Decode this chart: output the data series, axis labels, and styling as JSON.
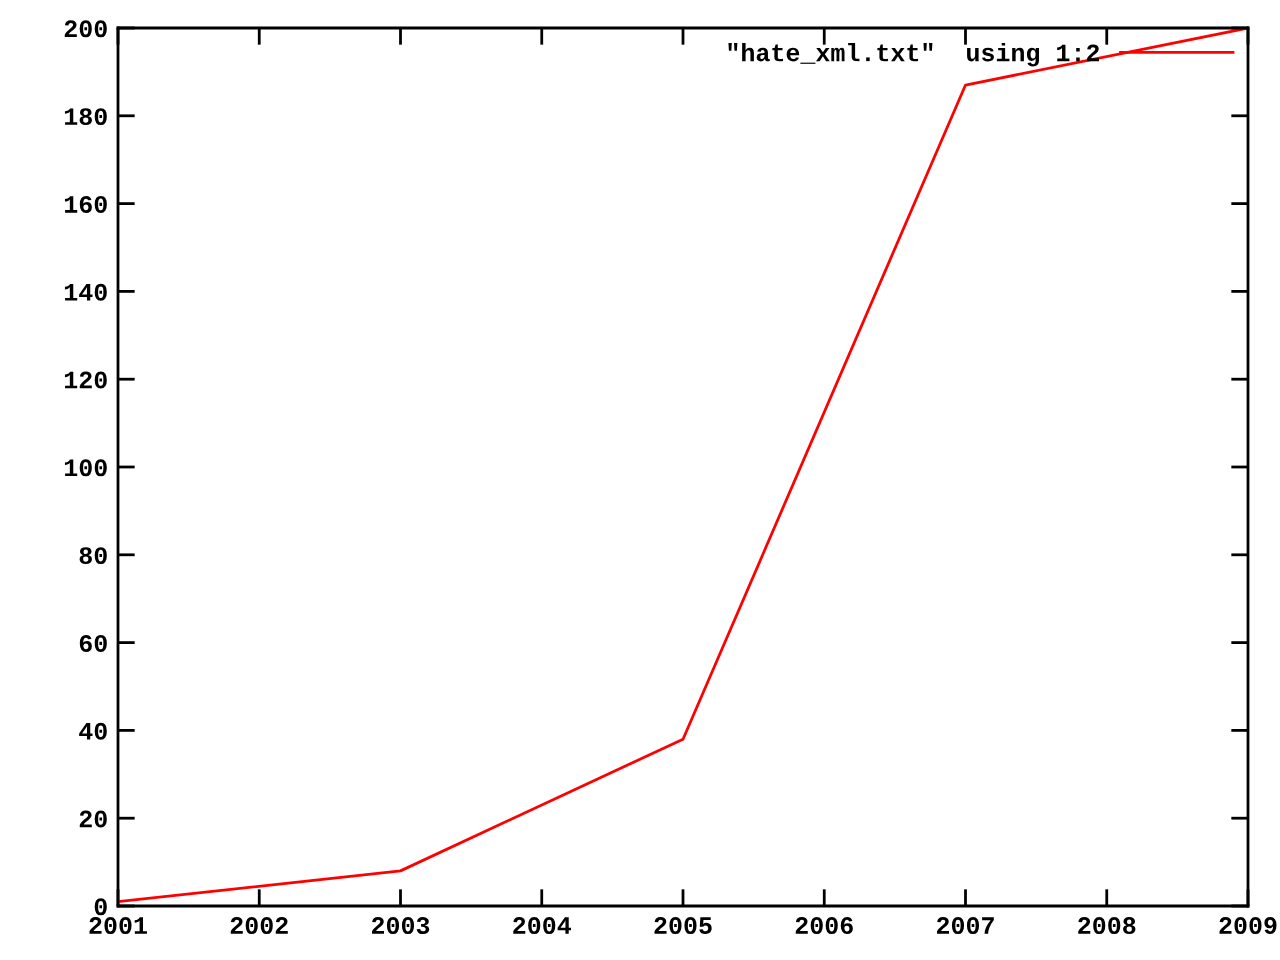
{
  "chart_data": {
    "type": "line",
    "x": [
      2001,
      2003,
      2005,
      2007,
      2009
    ],
    "series": [
      {
        "name": "\"hate_xml.txt\"  using 1:2",
        "color": "#ff0000",
        "values": [
          1,
          8,
          38,
          187,
          200
        ]
      }
    ],
    "xlim": [
      2001,
      2009
    ],
    "xticks": [
      2001,
      2002,
      2003,
      2004,
      2005,
      2006,
      2007,
      2008,
      2009
    ],
    "ylim": [
      0,
      200
    ],
    "yticks": [
      0,
      20,
      40,
      60,
      80,
      100,
      120,
      140,
      160,
      180,
      200
    ],
    "grid": false,
    "legend": "top right",
    "marker": "none",
    "line_style": "solid"
  }
}
